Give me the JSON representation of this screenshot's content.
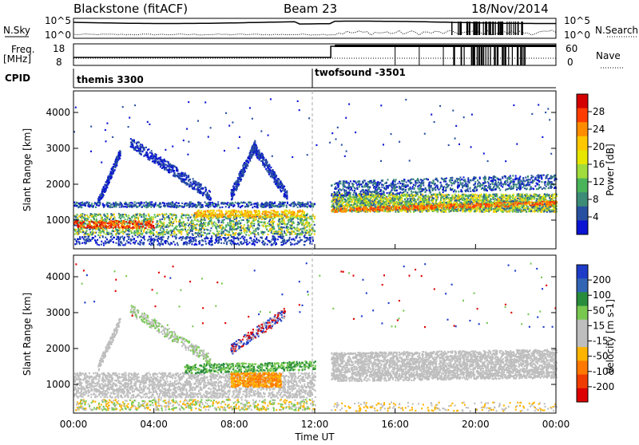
{
  "header": {
    "station": "Blackstone (fitACF)",
    "beam": "Beam 23",
    "date": "18/Nov/2014"
  },
  "top_panels": {
    "nsky_label": "N.Sky",
    "nsearch_label": "N.Search",
    "freq_label": "Freq.",
    "freq_unit": "[MHz]",
    "nave_label": "Nave",
    "cpid_label": "CPID",
    "noise_ticks_left": [
      "10^5",
      "10^0"
    ],
    "noise_ticks_right": [
      "10^5",
      "10^0"
    ],
    "freq_ticks": [
      "18",
      "8"
    ],
    "nave_ticks": [
      "60",
      "0"
    ]
  },
  "cpid_modes": [
    {
      "label": "themis 3300",
      "start_hour": 0
    },
    {
      "label": "twofsound -3501",
      "start_hour": 12
    }
  ],
  "chart_data": [
    {
      "type": "heatmap",
      "name": "power",
      "ylabel": "Slant Range [km]",
      "xlabel": "",
      "yticks": [
        1000,
        2000,
        3000,
        4000
      ],
      "xticks": [
        "00:00",
        "04:00",
        "08:00",
        "12:00",
        "16:00",
        "20:00",
        "00:00"
      ],
      "colorbar": {
        "label": "Power [dB]",
        "ticks": [
          "28",
          "24",
          "20",
          "16",
          "12",
          "8",
          "4"
        ],
        "colors": [
          "#d40000",
          "#ff3c00",
          "#ff8c00",
          "#ffc800",
          "#e6e600",
          "#a0dc3c",
          "#4ab45a",
          "#3c8c78",
          "#2850a0",
          "#0a14d2"
        ]
      }
    },
    {
      "type": "heatmap",
      "name": "velocity",
      "ylabel": "Slant Range [km]",
      "xlabel": "Time UT",
      "yticks": [
        1000,
        2000,
        3000,
        4000
      ],
      "xticks": [
        "00:00",
        "04:00",
        "08:00",
        "12:00",
        "16:00",
        "20:00",
        "00:00"
      ],
      "colorbar": {
        "label": "Velocity [m s-1]",
        "ticks": [
          "200",
          "100",
          "50",
          "15",
          "-15",
          "-50",
          "-100",
          "-200"
        ],
        "colors": [
          "#1e3cc8",
          "#3264b4",
          "#288c3c",
          "#78c850",
          "#bebebe",
          "#bebebe",
          "#ffb400",
          "#ff7800",
          "#f03c00",
          "#dc0000"
        ]
      }
    }
  ]
}
